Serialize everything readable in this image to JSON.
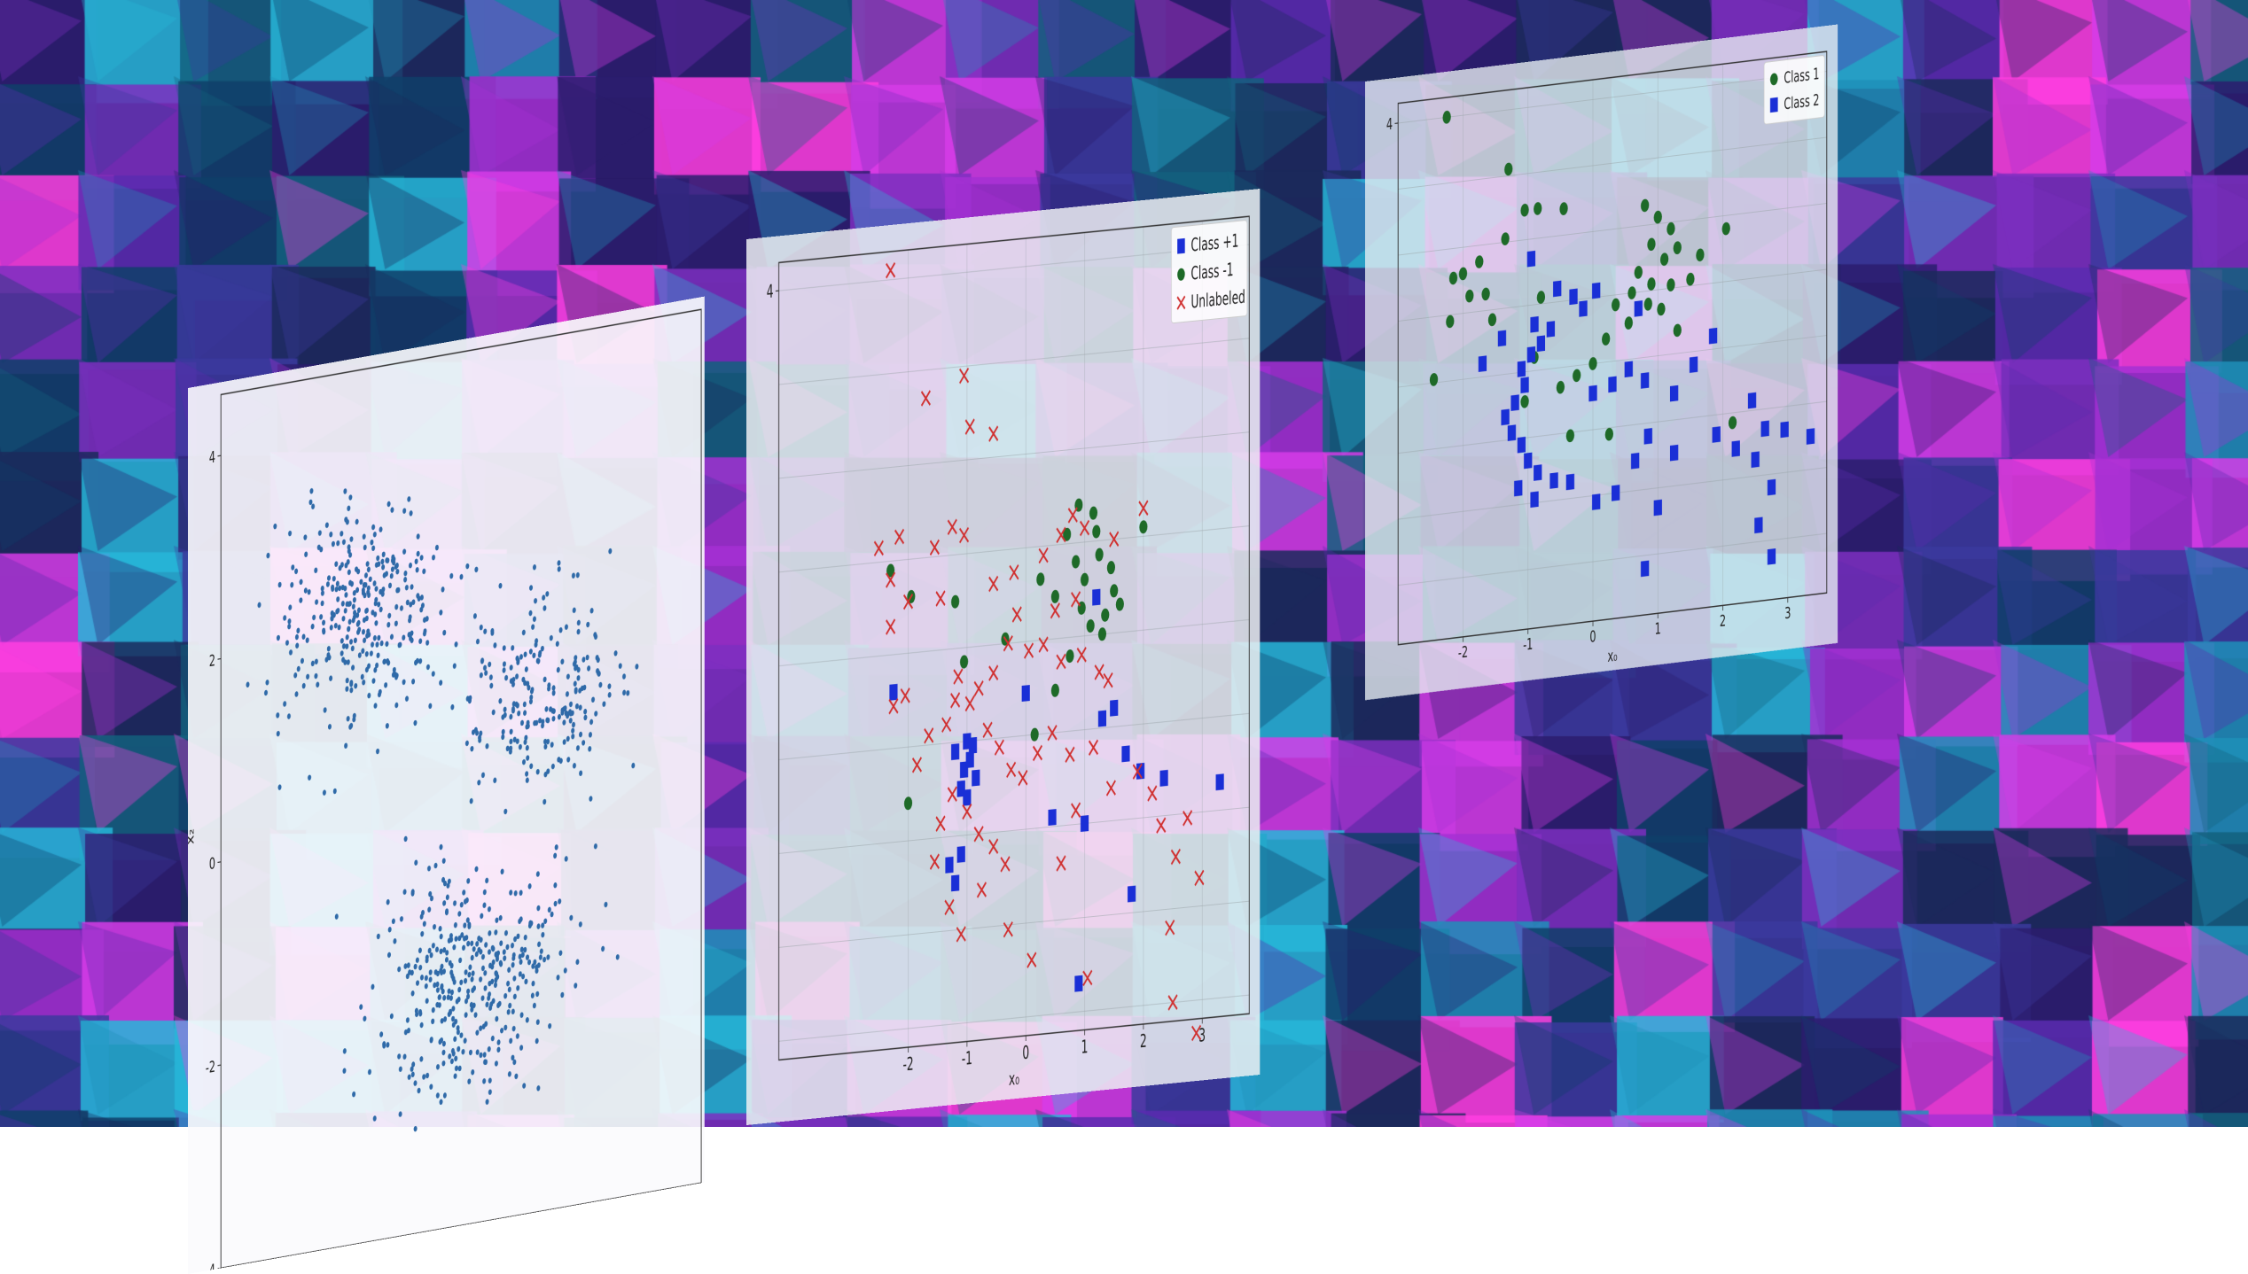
{
  "colors": {
    "bg_tiles": [
      "#2b1d6e",
      "#5b2bb0",
      "#d63ce8",
      "#1f8fb8",
      "#13607e",
      "#3b3a9e",
      "#7c2fc0",
      "#0f3f6a",
      "#a530d4",
      "#27b6d8",
      "#1b2a5c",
      "#ff3ee0"
    ],
    "blue_dot": "#2f6aa8",
    "red_x": "#d03030",
    "green": "#1e6a28",
    "blue_sq": "#1a2fd6"
  },
  "chart_data": [
    {
      "type": "scatter",
      "xlabel": "",
      "ylabel": "x₂",
      "ylim": [
        -4,
        4.6
      ],
      "xlim": [
        -3,
        3.2
      ],
      "yticks": [
        "4",
        "2",
        "0",
        "-2",
        "-4"
      ],
      "xticks": [],
      "grid": false,
      "series": [
        {
          "marker": "dot",
          "color": "#2f6aa8",
          "clusters": [
            {
              "center": [
                -1.2,
                2.2
              ],
              "spread": 0.55,
              "count": 330
            },
            {
              "center": [
                1.1,
                1.1
              ],
              "spread": 0.5,
              "count": 230
            },
            {
              "center": [
                0.2,
                -1.6
              ],
              "spread": 0.6,
              "count": 380
            }
          ]
        }
      ]
    },
    {
      "type": "scatter",
      "xlabel": "x₀",
      "ylabel": "",
      "xlim": [
        -4.2,
        3.8
      ],
      "ylim": [
        -4.2,
        4.3
      ],
      "xticks": [
        "-2",
        "-1",
        "0",
        "1",
        "2",
        "3"
      ],
      "yticks": [
        "4"
      ],
      "grid": true,
      "legend": "top-right",
      "series": [
        {
          "name": "Class +1",
          "marker": "square",
          "color": "#1a2fd6",
          "points": [
            [
              -1.0,
              -1.0
            ],
            [
              -1.05,
              -1.3
            ],
            [
              -0.95,
              -1.2
            ],
            [
              -1.1,
              -1.5
            ],
            [
              -1.2,
              -1.1
            ],
            [
              -0.85,
              -1.4
            ],
            [
              -1.0,
              -1.6
            ],
            [
              -1.3,
              -2.3
            ],
            [
              -1.2,
              -2.5
            ],
            [
              -1.1,
              -2.2
            ],
            [
              -2.25,
              -0.4
            ],
            [
              -0.9,
              -1.05
            ],
            [
              0.0,
              -0.55
            ],
            [
              0.45,
              -1.9
            ],
            [
              1.0,
              -2.0
            ],
            [
              1.3,
              -0.9
            ],
            [
              1.5,
              -0.8
            ],
            [
              1.7,
              -1.3
            ],
            [
              1.95,
              -1.5
            ],
            [
              2.35,
              -1.6
            ],
            [
              3.3,
              -1.7
            ],
            [
              1.8,
              -2.8
            ],
            [
              0.9,
              -3.7
            ],
            [
              1.2,
              0.4
            ]
          ]
        },
        {
          "name": "Class -1",
          "marker": "circle",
          "color": "#1e6a28",
          "points": [
            [
              0.9,
              1.4
            ],
            [
              1.15,
              1.3
            ],
            [
              1.2,
              1.1
            ],
            [
              1.25,
              0.85
            ],
            [
              1.45,
              0.7
            ],
            [
              1.5,
              0.45
            ],
            [
              1.6,
              0.3
            ],
            [
              0.7,
              1.1
            ],
            [
              0.85,
              0.8
            ],
            [
              1.0,
              0.6
            ],
            [
              0.95,
              0.3
            ],
            [
              1.1,
              0.1
            ],
            [
              1.35,
              0.2
            ],
            [
              0.5,
              0.45
            ],
            [
              0.25,
              0.65
            ],
            [
              0.75,
              -0.2
            ],
            [
              0.5,
              -0.55
            ],
            [
              0.15,
              -1.0
            ],
            [
              -1.95,
              0.6
            ],
            [
              -2.3,
              0.9
            ],
            [
              -1.05,
              -0.15
            ],
            [
              -1.2,
              0.5
            ],
            [
              -0.35,
              0.05
            ],
            [
              1.3,
              0.0
            ],
            [
              2.0,
              1.1
            ],
            [
              -2.0,
              -1.6
            ]
          ]
        },
        {
          "name": "Unlabeled",
          "marker": "x",
          "color": "#d03030",
          "points": [
            [
              -2.3,
              4.1
            ],
            [
              -1.7,
              2.7
            ],
            [
              -1.05,
              2.9
            ],
            [
              -0.95,
              2.35
            ],
            [
              -0.55,
              2.25
            ],
            [
              -1.55,
              1.1
            ],
            [
              -1.05,
              1.2
            ],
            [
              -1.25,
              1.3
            ],
            [
              -1.45,
              0.55
            ],
            [
              -2.15,
              1.25
            ],
            [
              -2.5,
              1.15
            ],
            [
              -2.3,
              0.8
            ],
            [
              -2.0,
              0.55
            ],
            [
              -2.3,
              0.3
            ],
            [
              -0.55,
              0.65
            ],
            [
              -0.2,
              0.75
            ],
            [
              0.3,
              0.9
            ],
            [
              0.6,
              1.1
            ],
            [
              0.8,
              1.3
            ],
            [
              1.0,
              1.15
            ],
            [
              1.5,
              1.0
            ],
            [
              2.0,
              1.3
            ],
            [
              0.85,
              0.4
            ],
            [
              0.5,
              0.3
            ],
            [
              -0.15,
              0.3
            ],
            [
              -0.3,
              0.0
            ],
            [
              0.05,
              -0.1
            ],
            [
              0.3,
              -0.05
            ],
            [
              0.6,
              -0.25
            ],
            [
              0.95,
              -0.2
            ],
            [
              1.25,
              -0.4
            ],
            [
              1.4,
              -0.5
            ],
            [
              -0.55,
              -0.3
            ],
            [
              -0.8,
              -0.45
            ],
            [
              -0.95,
              -0.6
            ],
            [
              -1.2,
              -0.55
            ],
            [
              -1.35,
              -0.8
            ],
            [
              -1.15,
              -0.3
            ],
            [
              -0.65,
              -0.9
            ],
            [
              -0.45,
              -1.1
            ],
            [
              -0.25,
              -1.35
            ],
            [
              -0.05,
              -1.45
            ],
            [
              0.2,
              -1.2
            ],
            [
              0.45,
              -1.0
            ],
            [
              0.75,
              -1.25
            ],
            [
              -1.25,
              -1.55
            ],
            [
              -1.0,
              -1.75
            ],
            [
              -0.8,
              -2.0
            ],
            [
              -0.55,
              -2.15
            ],
            [
              -0.35,
              -2.35
            ],
            [
              -1.45,
              -1.85
            ],
            [
              -1.55,
              -2.25
            ],
            [
              -1.3,
              -2.75
            ],
            [
              -1.1,
              -3.05
            ],
            [
              -0.75,
              -2.6
            ],
            [
              -0.3,
              -3.05
            ],
            [
              0.6,
              -2.4
            ],
            [
              0.85,
              -1.85
            ],
            [
              1.15,
              -1.2
            ],
            [
              1.45,
              -1.65
            ],
            [
              1.9,
              -1.5
            ],
            [
              2.15,
              -1.75
            ],
            [
              2.3,
              -2.1
            ],
            [
              2.55,
              -2.45
            ],
            [
              2.75,
              -2.05
            ],
            [
              2.95,
              -2.7
            ],
            [
              2.45,
              -3.2
            ],
            [
              2.5,
              -4.0
            ],
            [
              1.05,
              -3.65
            ],
            [
              0.1,
              -3.4
            ],
            [
              2.9,
              -4.35
            ],
            [
              -2.05,
              -0.45
            ],
            [
              -2.25,
              -0.55
            ],
            [
              -1.65,
              -0.9
            ],
            [
              -1.85,
              -1.2
            ]
          ]
        }
      ]
    },
    {
      "type": "scatter",
      "xlabel": "x₀",
      "ylabel": "",
      "xlim": [
        -3.0,
        3.6
      ],
      "ylim": [
        -3.9,
        4.3
      ],
      "xticks": [
        "-2",
        "-1",
        "0",
        "1",
        "2",
        "3"
      ],
      "yticks": [
        "4"
      ],
      "grid": true,
      "legend": "top-right",
      "series": [
        {
          "name": "Class 1",
          "marker": "circle",
          "color": "#1e6a28",
          "points": [
            [
              -2.25,
              4.0
            ],
            [
              -1.3,
              3.1
            ],
            [
              -1.05,
              2.45
            ],
            [
              -0.85,
              2.45
            ],
            [
              -0.45,
              2.4
            ],
            [
              -1.35,
              2.05
            ],
            [
              -1.75,
              1.75
            ],
            [
              -2.0,
              1.6
            ],
            [
              -2.15,
              1.55
            ],
            [
              -1.65,
              1.25
            ],
            [
              -1.55,
              0.85
            ],
            [
              -2.2,
              0.9
            ],
            [
              -1.9,
              1.25
            ],
            [
              0.8,
              2.3
            ],
            [
              1.0,
              2.1
            ],
            [
              1.2,
              1.9
            ],
            [
              0.9,
              1.7
            ],
            [
              1.3,
              1.6
            ],
            [
              1.1,
              1.45
            ],
            [
              0.7,
              1.3
            ],
            [
              0.9,
              1.1
            ],
            [
              1.2,
              1.05
            ],
            [
              1.5,
              1.1
            ],
            [
              0.6,
              1.0
            ],
            [
              0.85,
              0.8
            ],
            [
              1.05,
              0.7
            ],
            [
              0.55,
              0.55
            ],
            [
              0.35,
              0.85
            ],
            [
              0.2,
              0.35
            ],
            [
              1.3,
              0.35
            ],
            [
              0.0,
              0.0
            ],
            [
              -0.25,
              -0.15
            ],
            [
              -0.5,
              -0.3
            ],
            [
              -0.9,
              0.2
            ],
            [
              -1.05,
              -0.45
            ],
            [
              -0.35,
              -1.05
            ],
            [
              0.25,
              -1.1
            ],
            [
              2.15,
              -1.15
            ],
            [
              2.05,
              1.8
            ],
            [
              -2.45,
              0.05
            ],
            [
              -0.8,
              1.1
            ],
            [
              1.65,
              1.45
            ]
          ]
        },
        {
          "name": "Class 2",
          "marker": "square",
          "color": "#1a2fd6",
          "points": [
            [
              -0.95,
              1.7
            ],
            [
              -0.55,
              1.2
            ],
            [
              -0.3,
              1.05
            ],
            [
              0.05,
              1.1
            ],
            [
              -0.65,
              0.6
            ],
            [
              -0.8,
              0.4
            ],
            [
              -0.95,
              0.25
            ],
            [
              -1.1,
              0.05
            ],
            [
              -1.05,
              -0.2
            ],
            [
              -1.2,
              -0.45
            ],
            [
              -1.35,
              -0.65
            ],
            [
              -1.25,
              -0.9
            ],
            [
              -1.1,
              -1.1
            ],
            [
              -1.0,
              -1.35
            ],
            [
              -0.85,
              -1.55
            ],
            [
              -1.15,
              -1.75
            ],
            [
              -0.9,
              -1.95
            ],
            [
              -0.6,
              -1.7
            ],
            [
              -0.35,
              -1.75
            ],
            [
              0.05,
              -2.1
            ],
            [
              0.35,
              -2.0
            ],
            [
              0.0,
              -0.45
            ],
            [
              0.3,
              -0.35
            ],
            [
              0.55,
              -0.15
            ],
            [
              0.8,
              -0.35
            ],
            [
              1.25,
              -0.6
            ],
            [
              1.55,
              -0.2
            ],
            [
              0.85,
              -1.2
            ],
            [
              1.25,
              -1.5
            ],
            [
              0.65,
              -1.55
            ],
            [
              1.0,
              -2.3
            ],
            [
              0.8,
              -3.2
            ],
            [
              1.9,
              -1.3
            ],
            [
              2.2,
              -1.55
            ],
            [
              2.45,
              -0.85
            ],
            [
              2.5,
              -1.75
            ],
            [
              2.65,
              -1.3
            ],
            [
              2.75,
              -2.2
            ],
            [
              2.95,
              -1.35
            ],
            [
              3.35,
              -1.5
            ],
            [
              2.55,
              -2.75
            ],
            [
              2.75,
              -3.25
            ],
            [
              -0.9,
              0.7
            ],
            [
              -0.15,
              0.85
            ],
            [
              0.7,
              0.75
            ],
            [
              1.85,
              0.2
            ],
            [
              -1.7,
              0.2
            ],
            [
              -1.4,
              0.55
            ]
          ]
        }
      ]
    }
  ]
}
